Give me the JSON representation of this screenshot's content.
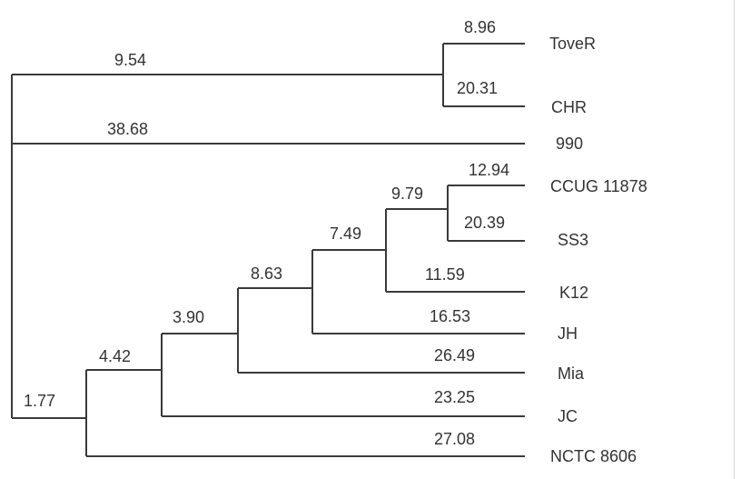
{
  "tree": {
    "leaves": [
      "ToveR",
      "CHR",
      "990",
      "CCUG 11878",
      "SS3",
      "K12",
      "JH",
      "Mia",
      "JC",
      "NCTC 8606"
    ],
    "branch_lengths": [
      {
        "branch": "root-to-ToveR-CHR-clade",
        "value": "9.54"
      },
      {
        "branch": "ToveR",
        "value": "8.96"
      },
      {
        "branch": "CHR",
        "value": "20.31"
      },
      {
        "branch": "990",
        "value": "38.68"
      },
      {
        "branch": "root-to-lower-clade",
        "value": "1.77"
      },
      {
        "branch": "to-JC-group-clade",
        "value": "4.42"
      },
      {
        "branch": "to-Mia-group-clade",
        "value": "3.90"
      },
      {
        "branch": "to-JH-group-clade",
        "value": "8.63"
      },
      {
        "branch": "to-K12-group-clade",
        "value": "7.49"
      },
      {
        "branch": "to-CCUG-SS3-clade",
        "value": "9.79"
      },
      {
        "branch": "CCUG 11878",
        "value": "12.94"
      },
      {
        "branch": "SS3",
        "value": "20.39"
      },
      {
        "branch": "K12",
        "value": "11.59"
      },
      {
        "branch": "JH",
        "value": "16.53"
      },
      {
        "branch": "Mia",
        "value": "26.49"
      },
      {
        "branch": "JC",
        "value": "23.25"
      },
      {
        "branch": "NCTC 8606",
        "value": "27.08"
      }
    ]
  }
}
